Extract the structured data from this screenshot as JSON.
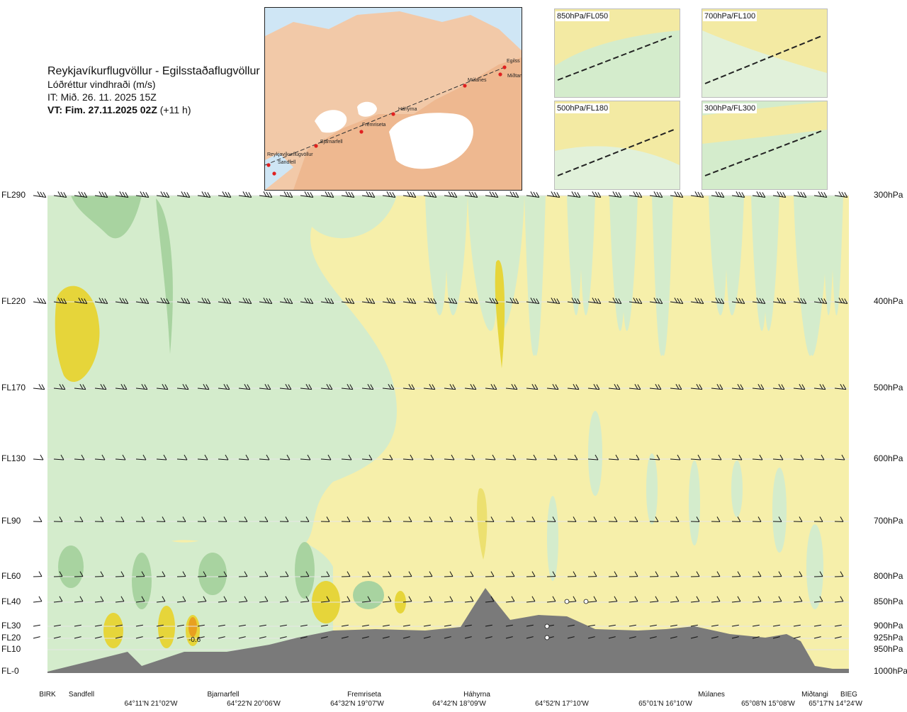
{
  "header": {
    "route": "Reykjavíkurflugvöllur - Egilsstaðaflugvöllur",
    "variable": "Lóðréttur vindhraði (m/s)",
    "issue_time": "IT: Mið. 26. 11. 2025 15Z",
    "valid_prefix": "VT: Fim. 27.11.2025 02Z",
    "valid_suffix": "(+11 h)"
  },
  "map": {
    "stations": [
      "Reykjavíkurflugvöllur",
      "Sandfell",
      "Bjarnarfell",
      "Fremriseta",
      "Háhyrna",
      "Múlanes",
      "Egilss",
      "Miðtangi"
    ]
  },
  "insets": [
    "850hPa/FL050",
    "700hPa/FL100",
    "500hPa/FL180",
    "300hPa/FL300"
  ],
  "colors": {
    "yellow_light": "#f6efaa",
    "yellow_mid": "#ece070",
    "yellow_strong": "#e6d53a",
    "orange": "#e8a020",
    "green_light": "#d4eccc",
    "green_mid": "#a8d3a0",
    "green_strong": "#6fb46b",
    "white_band": "#fbfbe6",
    "terrain": "#7a7a7a"
  },
  "chart_data": {
    "type": "heatmap",
    "title": "Lóðréttur vindhraði (m/s)",
    "left_axis_labels": [
      "FL290",
      "FL220",
      "FL170",
      "FL130",
      "FL90",
      "FL60",
      "FL40",
      "FL30",
      "FL20",
      "FL10",
      "FL-0"
    ],
    "right_axis_labels": [
      "300hPa",
      "400hPa",
      "500hPa",
      "600hPa",
      "700hPa",
      "800hPa",
      "850hPa",
      "900hPa",
      "925hPa",
      "950hPa",
      "1000hPa"
    ],
    "waypoints": [
      "BIRK",
      "Sandfell",
      "Bjarnarfell",
      "Fremriseta",
      "Háhyrna",
      "Múlanes",
      "Miðtangi",
      "BIEG"
    ],
    "coordinates": [
      "64°11'N 21°02'W",
      "64°22'N 20°06'W",
      "64°32'N 19°07'W",
      "64°42'N 18°09'W",
      "64°52'N 17°10'W",
      "65°01'N 16°10'W",
      "65°08'N 15°08'W",
      "65°17'N 14°24'W"
    ],
    "annotation": "-0.6",
    "wind_barb_levels": [
      "FL290",
      "FL220",
      "FL170",
      "FL130",
      "FL90",
      "FL60",
      "FL40",
      "FL30",
      "FL20"
    ]
  }
}
